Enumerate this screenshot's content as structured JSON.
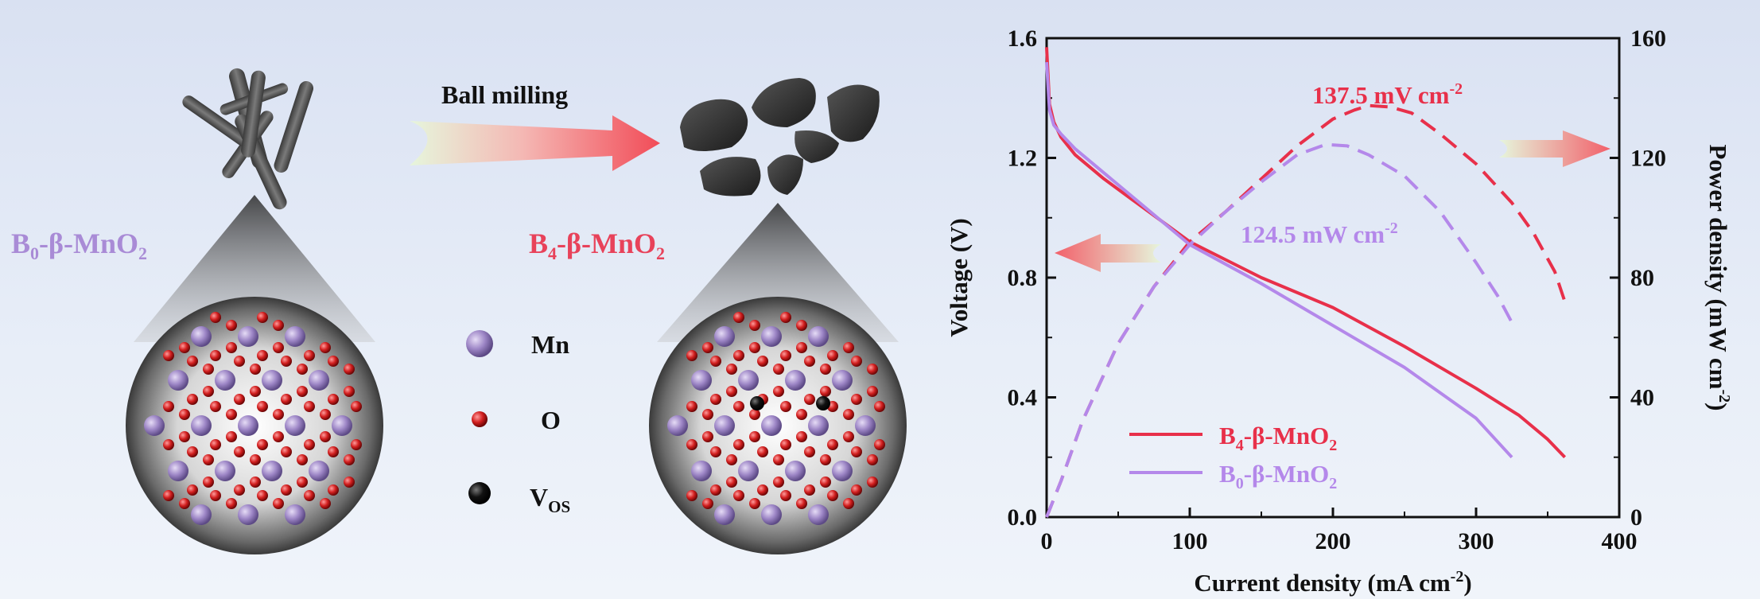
{
  "left_panel": {
    "process_label": "Ball milling",
    "pristine_label": {
      "main": "B",
      "sub": "0",
      "rest": "-β-MnO",
      "sub2": "2"
    },
    "milled_label": {
      "main": "B",
      "sub": "4",
      "rest": "-β-MnO",
      "sub2": "2"
    },
    "legend": {
      "mn": "Mn",
      "o": "O",
      "vos": {
        "main": "V",
        "sub": "OS"
      }
    },
    "colors": {
      "mn": "#9d86c6",
      "o": "#c41a1a",
      "vos": "#111111",
      "pristine_text": "#a98bd6",
      "milled_text": "#e8425a"
    }
  },
  "chart_data": {
    "type": "line",
    "xlabel": "Current density (mA cm",
    "xlabel_sup": "-2",
    "xlabel_end": ")",
    "ylabel": "Voltage (V)",
    "y2label": "Power density (mW cm",
    "y2label_sup": "-2",
    "y2label_end": ")",
    "xlim": [
      0,
      400
    ],
    "ylim": [
      0.0,
      1.6
    ],
    "y2lim": [
      0,
      160
    ],
    "xticks": [
      "0",
      "100",
      "200",
      "300",
      "400"
    ],
    "yticks": [
      "0.0",
      "0.4",
      "0.8",
      "1.2",
      "1.6"
    ],
    "y2ticks": [
      "0",
      "40",
      "80",
      "120",
      "160"
    ],
    "series": [
      {
        "name": "B4-β-MnO2",
        "legend": {
          "main": "B",
          "sub": "4",
          "rest": "-β-MnO",
          "sub2": "2"
        },
        "color": "#e8304a",
        "voltage": {
          "x": [
            0,
            2,
            5,
            10,
            20,
            40,
            60,
            80,
            100,
            150,
            200,
            250,
            300,
            330,
            350,
            362
          ],
          "y": [
            1.57,
            1.38,
            1.32,
            1.27,
            1.21,
            1.13,
            1.06,
            0.99,
            0.92,
            0.8,
            0.7,
            0.57,
            0.43,
            0.34,
            0.26,
            0.2
          ]
        },
        "power": {
          "x": [
            0,
            10,
            25,
            50,
            75,
            100,
            125,
            150,
            175,
            200,
            215,
            225,
            240,
            255,
            275,
            300,
            325,
            340,
            355,
            362
          ],
          "y": [
            0,
            12,
            32,
            58,
            77,
            92,
            102,
            113,
            124,
            133,
            136,
            137.5,
            137,
            135,
            128,
            118,
            105,
            95,
            82,
            72
          ]
        },
        "peak_label": "137.5 mV cm",
        "peak_sup": "-2"
      },
      {
        "name": "B0-β-MnO2",
        "legend": {
          "main": "B",
          "sub": "0",
          "rest": "-β-MnO",
          "sub2": "2"
        },
        "color": "#b488ea",
        "voltage": {
          "x": [
            0,
            2,
            5,
            10,
            20,
            40,
            60,
            80,
            100,
            150,
            200,
            250,
            300,
            325
          ],
          "y": [
            1.52,
            1.36,
            1.31,
            1.28,
            1.23,
            1.15,
            1.07,
            0.99,
            0.91,
            0.78,
            0.64,
            0.5,
            0.33,
            0.2
          ]
        },
        "power": {
          "x": [
            0,
            10,
            25,
            50,
            75,
            100,
            125,
            150,
            175,
            195,
            210,
            225,
            250,
            275,
            300,
            315,
            325
          ],
          "y": [
            0,
            12,
            32,
            58,
            77,
            91,
            102,
            112,
            121,
            124.5,
            124,
            121,
            114,
            102,
            85,
            74,
            65
          ]
        },
        "peak_label": "124.5 mW cm",
        "peak_sup": "-2"
      }
    ]
  }
}
